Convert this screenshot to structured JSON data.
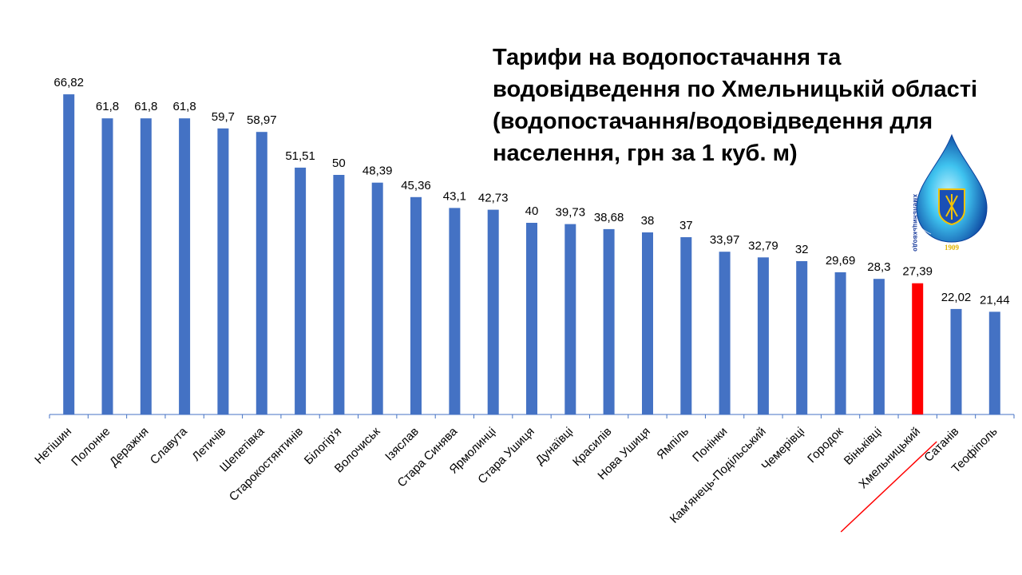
{
  "title": "Тарифи на водопостачання та\nводовідведення по Хмельницькій області\n(водопостачання/водовідведення для\nнаселення, грн за 1 куб. м)",
  "logo": {
    "text": "хмельницькводоканал",
    "year": "1909"
  },
  "colors": {
    "bar": "#4472C4",
    "highlight": "#FF0000",
    "text": "#000000",
    "axis": "#4472C4"
  },
  "chart_data": {
    "type": "bar",
    "title": "Тарифи на водопостачання та водовідведення по Хмельницькій області (водопостачання/водовідведення для населення, грн за 1 куб. м)",
    "xlabel": "",
    "ylabel": "",
    "ylim": [
      0,
      70
    ],
    "grid": false,
    "legend": "none",
    "categories": [
      "Нетішин",
      "Полонне",
      "Деражня",
      "Славута",
      "Летичів",
      "Шепетівка",
      "Старокостянтинів",
      "Білогір'я",
      "Волочиськ",
      "Ізяслав",
      "Стара Синява",
      "Ярмолинці",
      "Стара Ушиця",
      "Дунаївці",
      "Красилів",
      "Нова Ушиця",
      "Ямпіль",
      "Понінки",
      "Кам'янець-Подільський",
      "Чемерівці",
      "Городок",
      "Віньківці",
      "Хмельницький",
      "Сатанів",
      "Теофіполь"
    ],
    "values": [
      66.82,
      61.8,
      61.8,
      61.8,
      59.7,
      58.97,
      51.51,
      50,
      48.39,
      45.36,
      43.1,
      42.73,
      40,
      39.73,
      38.68,
      38,
      37,
      33.97,
      32.79,
      32,
      29.69,
      28.3,
      27.39,
      22.02,
      21.44
    ],
    "value_labels": [
      "66,82",
      "61,8",
      "61,8",
      "61,8",
      "59,7",
      "58,97",
      "51,51",
      "50",
      "48,39",
      "45,36",
      "43,1",
      "42,73",
      "40",
      "39,73",
      "38,68",
      "38",
      "37",
      "33,97",
      "32,79",
      "32",
      "29,69",
      "28,3",
      "27,39",
      "22,02",
      "21,44"
    ],
    "highlight": "Хмельницький",
    "highlight_color": "#FF0000",
    "highlight_underline": true
  }
}
